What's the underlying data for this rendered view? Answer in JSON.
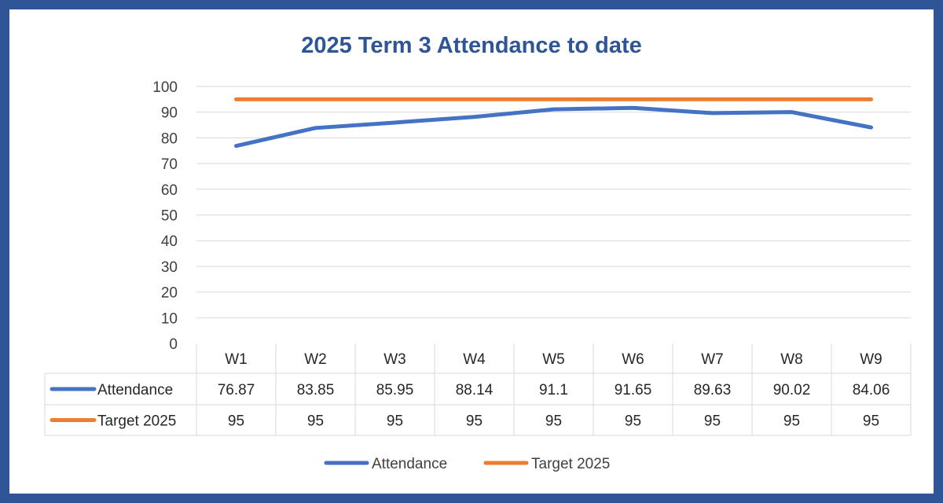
{
  "chart_data": {
    "type": "line",
    "title": "2025 Term 3 Attendance to date",
    "categories": [
      "W1",
      "W2",
      "W3",
      "W4",
      "W5",
      "W6",
      "W7",
      "W8",
      "W9"
    ],
    "series": [
      {
        "name": "Attendance",
        "values": [
          76.87,
          83.85,
          85.95,
          88.14,
          91.1,
          91.65,
          89.63,
          90.02,
          84.06
        ],
        "labels": [
          "76.87",
          "83.85",
          "85.95",
          "88.14",
          "91.1",
          "91.65",
          "89.63",
          "90.02",
          "84.06"
        ],
        "color": "#4472c4"
      },
      {
        "name": "Target 2025",
        "values": [
          95,
          95,
          95,
          95,
          95,
          95,
          95,
          95,
          95
        ],
        "labels": [
          "95",
          "95",
          "95",
          "95",
          "95",
          "95",
          "95",
          "95",
          "95"
        ],
        "color": "#ed7d31"
      }
    ],
    "ylim": [
      0,
      100
    ],
    "yticks": [
      "0",
      "10",
      "20",
      "30",
      "40",
      "50",
      "60",
      "70",
      "80",
      "90",
      "100"
    ],
    "grid": true,
    "data_table": true,
    "legend_position": "bottom"
  },
  "colors": {
    "frame": "#2f5597",
    "title": "#2f5597",
    "gridline": "#d9d9d9"
  }
}
